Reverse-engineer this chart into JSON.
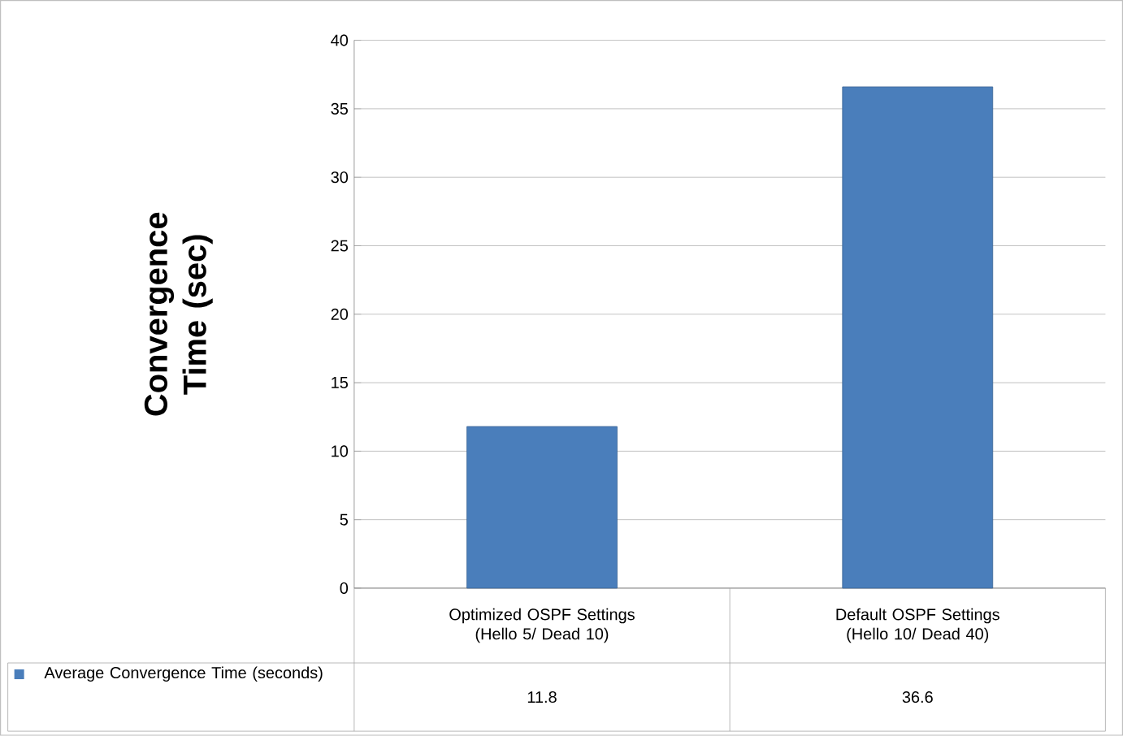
{
  "chart_data": {
    "type": "bar",
    "ylabel": "Convergence Time (sec)",
    "categories": [
      "Optimized OSPF Settings (Hello 5/ Dead 10)",
      "Default OSPF Settings (Hello 10/ Dead 40)"
    ],
    "series": [
      {
        "name": "Average Convergence Time (seconds)",
        "color": "#4a7ebb",
        "values": [
          11.8,
          36.6
        ]
      }
    ],
    "ylim": [
      0,
      40
    ],
    "yticks": [
      0,
      5,
      10,
      15,
      20,
      25,
      30,
      35,
      40
    ],
    "grid": "y",
    "data_labels": true,
    "legend": "bottom"
  }
}
